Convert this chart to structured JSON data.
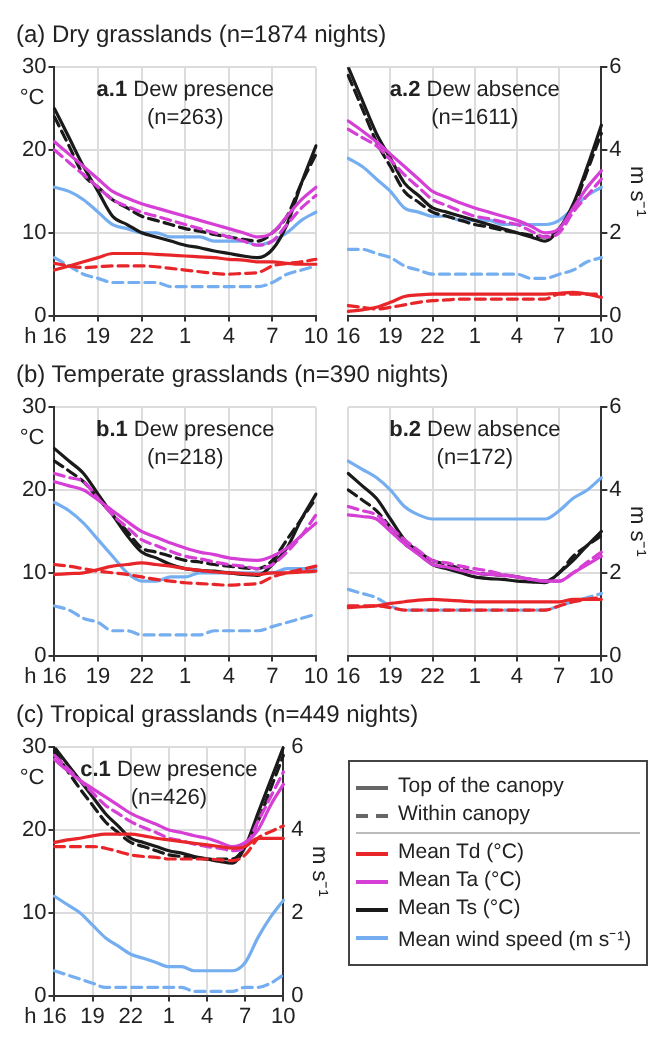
{
  "chart_data": [
    {
      "type": "line",
      "title": "a.1 Dew presence",
      "subtitle": "(n=263)",
      "annotations": [
        "(a) Dry grasslands (n=1874 nights)"
      ],
      "xlabel": "h",
      "ylabel": "°C",
      "tick_labels": "xy",
      "grid": true,
      "marker": "none",
      "categories": [
        "16",
        null,
        null,
        "19",
        null,
        null,
        "22",
        null,
        null,
        "1",
        null,
        null,
        "4",
        null,
        null,
        "7",
        null,
        null,
        "10"
      ],
      "ylim": [
        0,
        30
      ],
      "yticks": [
        0,
        10,
        20,
        30
      ],
      "y2lim": [
        0,
        6
      ],
      "series": [
        {
          "color": "#e8262a",
          "line_style": "solid",
          "values": [
            5.5,
            6,
            6.5,
            7,
            7.5,
            7.5,
            7.5,
            7.4,
            7.3,
            7.2,
            7.1,
            7,
            6.8,
            6.7,
            6.5,
            6.5,
            6.3,
            6.2,
            6.2
          ]
        },
        {
          "color": "#e8262a",
          "line_style": "dashed",
          "values": [
            6.3,
            6,
            5.8,
            5.9,
            6,
            6,
            6,
            5.9,
            5.7,
            5.5,
            5.3,
            5.1,
            5,
            5.1,
            5.2,
            6,
            6.3,
            6.5,
            6.8
          ]
        },
        {
          "color": "#d63fd6",
          "line_style": "solid",
          "values": [
            21,
            19.5,
            18,
            16.5,
            15,
            14.2,
            13.5,
            13,
            12.5,
            12,
            11.5,
            11,
            10.5,
            10,
            9.5,
            10,
            12,
            14,
            15.5
          ]
        },
        {
          "color": "#d63fd6",
          "line_style": "dashed",
          "values": [
            20,
            18.5,
            17,
            15.5,
            14,
            13.2,
            12.5,
            12,
            11.5,
            11,
            10.5,
            10,
            9.5,
            9,
            8.5,
            9,
            11,
            13,
            14.5
          ]
        },
        {
          "color": "#1a1a1a",
          "line_style": "solid",
          "values": [
            25,
            21.5,
            18,
            15,
            12,
            11,
            10,
            9.5,
            9,
            8.5,
            8.2,
            7.8,
            7.5,
            7.2,
            7,
            8,
            11,
            16,
            20.5
          ]
        },
        {
          "color": "#1a1a1a",
          "line_style": "dashed",
          "values": [
            24,
            20.5,
            17,
            15.5,
            14,
            13,
            12,
            11.5,
            11,
            10.5,
            10.2,
            9.8,
            9.5,
            9.2,
            9,
            10,
            12,
            16,
            19.5
          ]
        },
        {
          "color": "#74aef0",
          "line_style": "solid",
          "axis": "y2",
          "values": [
            3.1,
            3.0,
            2.8,
            2.5,
            2.2,
            2.1,
            2.0,
            2.0,
            1.9,
            1.9,
            1.9,
            1.8,
            1.8,
            1.8,
            1.7,
            1.8,
            2.0,
            2.3,
            2.5
          ]
        },
        {
          "color": "#74aef0",
          "line_style": "dashed",
          "axis": "y2",
          "values": [
            1.4,
            1.2,
            1.0,
            0.9,
            0.8,
            0.8,
            0.8,
            0.8,
            0.7,
            0.7,
            0.7,
            0.7,
            0.7,
            0.7,
            0.7,
            0.8,
            1.0,
            1.1,
            1.2
          ]
        }
      ]
    },
    {
      "type": "line",
      "title": "a.2 Dew absence",
      "subtitle": "(n=1611)",
      "y2label": "m s⁻¹",
      "tick_labels": "xy2",
      "grid": true,
      "marker": "none",
      "categories": [
        "16",
        null,
        null,
        "19",
        null,
        null,
        "22",
        null,
        null,
        "1",
        null,
        null,
        "4",
        null,
        null,
        "7",
        null,
        null,
        "10"
      ],
      "ylim": [
        0,
        30
      ],
      "y2lim": [
        0,
        6
      ],
      "y2ticks": [
        0,
        2,
        4,
        6
      ],
      "series": [
        {
          "color": "#e8262a",
          "line_style": "solid",
          "values": [
            0.5,
            0.7,
            1,
            1.6,
            2.3,
            2.5,
            2.6,
            2.6,
            2.6,
            2.6,
            2.6,
            2.6,
            2.6,
            2.6,
            2.6,
            2.7,
            2.8,
            2.6,
            2.2
          ]
        },
        {
          "color": "#e8262a",
          "line_style": "dashed",
          "values": [
            1.2,
            1,
            0.8,
            1,
            1.3,
            1.6,
            1.8,
            1.9,
            2,
            2,
            2,
            2,
            2,
            2,
            2,
            2.6,
            2.6,
            2.6,
            2.6
          ]
        },
        {
          "color": "#d63fd6",
          "line_style": "solid",
          "values": [
            23.5,
            22.3,
            21,
            19.5,
            18,
            16.5,
            15,
            14.3,
            13.6,
            13,
            12.5,
            12,
            11.5,
            10.8,
            10,
            10.5,
            13,
            15.5,
            17.5
          ]
        },
        {
          "color": "#d63fd6",
          "line_style": "dashed",
          "values": [
            22.5,
            21.5,
            20.5,
            18.8,
            17,
            15.5,
            14,
            13.3,
            12.6,
            12,
            11.7,
            11.3,
            11,
            10.2,
            9.5,
            10,
            12.5,
            14.5,
            16.5
          ]
        },
        {
          "color": "#1a1a1a",
          "line_style": "solid",
          "values": [
            30,
            26,
            22,
            19,
            16,
            14.5,
            13,
            12.5,
            12,
            11.5,
            11,
            10.5,
            10,
            9.5,
            9,
            10.5,
            13.5,
            18,
            23
          ]
        },
        {
          "color": "#1a1a1a",
          "line_style": "dashed",
          "values": [
            29,
            25,
            21,
            18,
            15,
            13.7,
            12.5,
            12,
            11.5,
            11,
            10.7,
            10.3,
            10,
            9.7,
            9.5,
            10.5,
            13,
            17.5,
            22
          ]
        },
        {
          "color": "#74aef0",
          "line_style": "solid",
          "axis": "y2",
          "values": [
            3.8,
            3.6,
            3.3,
            3.0,
            2.6,
            2.5,
            2.4,
            2.4,
            2.3,
            2.3,
            2.3,
            2.2,
            2.2,
            2.2,
            2.2,
            2.3,
            2.6,
            2.9,
            3.1
          ]
        },
        {
          "color": "#74aef0",
          "line_style": "dashed",
          "axis": "y2",
          "values": [
            1.6,
            1.6,
            1.5,
            1.4,
            1.2,
            1.1,
            1.0,
            1.0,
            1.0,
            1.0,
            1.0,
            1.0,
            1.0,
            0.9,
            0.9,
            1.0,
            1.1,
            1.3,
            1.4
          ]
        }
      ]
    },
    {
      "type": "line",
      "title": "b.1 Dew presence",
      "subtitle": "(n=218)",
      "annotations": [
        "(b) Temperate grasslands (n=390 nights)"
      ],
      "xlabel": "h",
      "ylabel": "°C",
      "tick_labels": "xy",
      "grid": true,
      "marker": "none",
      "categories": [
        "16",
        null,
        null,
        "19",
        null,
        null,
        "22",
        null,
        null,
        "1",
        null,
        null,
        "4",
        null,
        null,
        "7",
        null,
        null,
        "10"
      ],
      "ylim": [
        0,
        30
      ],
      "yticks": [
        0,
        10,
        20,
        30
      ],
      "y2lim": [
        0,
        6
      ],
      "series": [
        {
          "color": "#e8262a",
          "line_style": "solid",
          "values": [
            9.8,
            9.9,
            10,
            10.4,
            10.8,
            11,
            11.2,
            11,
            10.8,
            10.5,
            10.3,
            10.1,
            10,
            9.9,
            9.8,
            10,
            10,
            10.1,
            10.2
          ]
        },
        {
          "color": "#e8262a",
          "line_style": "dashed",
          "values": [
            11,
            10.8,
            10.5,
            10.2,
            10,
            9.8,
            9.5,
            9.2,
            9,
            8.8,
            8.7,
            8.6,
            8.5,
            8.6,
            8.7,
            9.5,
            10,
            10.4,
            10.8
          ]
        },
        {
          "color": "#d63fd6",
          "line_style": "solid",
          "values": [
            21,
            20.5,
            20,
            18.8,
            17.5,
            16.2,
            15,
            14.3,
            13.6,
            13,
            12.5,
            12.2,
            11.8,
            11.6,
            11.5,
            12,
            13,
            14.5,
            16
          ]
        },
        {
          "color": "#d63fd6",
          "line_style": "dashed",
          "values": [
            22,
            21.5,
            21,
            19,
            17,
            15.5,
            14,
            13.3,
            12.6,
            12,
            11.7,
            11.3,
            11,
            10.8,
            10.5,
            11,
            12.5,
            14.5,
            17
          ]
        },
        {
          "color": "#1a1a1a",
          "line_style": "solid",
          "values": [
            25,
            23.5,
            22,
            19.5,
            17,
            14.5,
            12.5,
            11.8,
            11,
            10.5,
            10.3,
            10.2,
            10,
            9.8,
            9.7,
            11,
            13,
            16.5,
            19.5
          ]
        },
        {
          "color": "#1a1a1a",
          "line_style": "dashed",
          "values": [
            23.5,
            22.3,
            21,
            19,
            17,
            15,
            13,
            12.5,
            12,
            11.5,
            11.3,
            11,
            10.8,
            10.6,
            10.5,
            11.5,
            14,
            16.5,
            19
          ]
        },
        {
          "color": "#74aef0",
          "line_style": "solid",
          "axis": "y2",
          "values": [
            3.7,
            3.5,
            3.2,
            2.8,
            2.4,
            2.0,
            1.8,
            1.8,
            1.9,
            1.9,
            2.0,
            2.0,
            2.0,
            2.0,
            2.0,
            2.0,
            2.1,
            2.1,
            2.1
          ]
        },
        {
          "color": "#74aef0",
          "line_style": "dashed",
          "axis": "y2",
          "values": [
            1.2,
            1.1,
            0.9,
            0.8,
            0.6,
            0.6,
            0.5,
            0.5,
            0.5,
            0.5,
            0.5,
            0.6,
            0.6,
            0.6,
            0.6,
            0.7,
            0.8,
            0.9,
            1.0
          ]
        }
      ]
    },
    {
      "type": "line",
      "title": "b.2 Dew absence",
      "subtitle": "(n=172)",
      "y2label": "m s⁻¹",
      "tick_labels": "xy2",
      "grid": true,
      "marker": "none",
      "categories": [
        "16",
        null,
        null,
        "19",
        null,
        null,
        "22",
        null,
        null,
        "1",
        null,
        null,
        "4",
        null,
        null,
        "7",
        null,
        null,
        "10"
      ],
      "ylim": [
        0,
        30
      ],
      "y2lim": [
        0,
        6
      ],
      "y2ticks": [
        0,
        2,
        4,
        6
      ],
      "series": [
        {
          "color": "#e8262a",
          "line_style": "solid",
          "values": [
            5.8,
            5.9,
            6,
            6.3,
            6.5,
            6.7,
            6.8,
            6.7,
            6.6,
            6.5,
            6.5,
            6.5,
            6.5,
            6.5,
            6.5,
            6.5,
            6.8,
            6.8,
            6.8
          ]
        },
        {
          "color": "#e8262a",
          "line_style": "dashed",
          "values": [
            6,
            6,
            6,
            5.8,
            5.5,
            5.5,
            5.5,
            5.5,
            5.5,
            5.5,
            5.5,
            5.5,
            5.5,
            5.5,
            5.5,
            6,
            6.5,
            6.8,
            7
          ]
        },
        {
          "color": "#d63fd6",
          "line_style": "solid",
          "values": [
            17,
            16.8,
            16.5,
            15,
            13.5,
            12.2,
            11,
            10.7,
            10.3,
            10,
            9.8,
            9.7,
            9.5,
            9.2,
            9,
            9,
            10,
            11,
            12
          ]
        },
        {
          "color": "#d63fd6",
          "line_style": "dashed",
          "values": [
            18,
            17.5,
            17,
            15.5,
            14,
            12.7,
            11.5,
            11.2,
            10.8,
            10.5,
            10.2,
            9.8,
            9.5,
            9.2,
            9,
            9,
            10,
            11.3,
            12.5
          ]
        },
        {
          "color": "#1a1a1a",
          "line_style": "solid",
          "values": [
            22,
            20.5,
            19,
            16.5,
            14,
            12.5,
            11,
            10.5,
            10,
            9.5,
            9.3,
            9.2,
            9,
            8.9,
            8.8,
            10,
            11.5,
            13.3,
            15
          ]
        },
        {
          "color": "#1a1a1a",
          "line_style": "dashed",
          "values": [
            20,
            18.8,
            17.5,
            15.5,
            13.5,
            12.5,
            11.5,
            11,
            10.5,
            10,
            9.8,
            9.7,
            9.5,
            9.2,
            9,
            10,
            12,
            13.3,
            14.5
          ]
        },
        {
          "color": "#74aef0",
          "line_style": "solid",
          "axis": "y2",
          "values": [
            4.7,
            4.5,
            4.3,
            4.0,
            3.6,
            3.4,
            3.3,
            3.3,
            3.3,
            3.3,
            3.3,
            3.3,
            3.3,
            3.3,
            3.3,
            3.5,
            3.8,
            4.0,
            4.3
          ]
        },
        {
          "color": "#74aef0",
          "line_style": "dashed",
          "axis": "y2",
          "values": [
            1.6,
            1.5,
            1.4,
            1.2,
            1.1,
            1.1,
            1.1,
            1.1,
            1.1,
            1.1,
            1.1,
            1.1,
            1.1,
            1.1,
            1.1,
            1.2,
            1.3,
            1.4,
            1.5
          ]
        }
      ]
    },
    {
      "type": "line",
      "title": "c.1 Dew presence",
      "subtitle": "(n=426)",
      "annotations": [
        "(c) Tropical grasslands (n=449 nights)"
      ],
      "xlabel": "h",
      "ylabel": "°C",
      "y2label": "m s⁻¹",
      "grid": true,
      "marker": "none",
      "categories": [
        "16",
        null,
        null,
        "19",
        null,
        null,
        "22",
        null,
        null,
        "1",
        null,
        null,
        "4",
        null,
        null,
        "7",
        null,
        null,
        "10"
      ],
      "ylim": [
        0,
        30
      ],
      "yticks": [
        0,
        10,
        20,
        30
      ],
      "y2lim": [
        0,
        6
      ],
      "y2ticks": [
        0,
        2,
        4,
        6
      ],
      "series": [
        {
          "color": "#e8262a",
          "line_style": "solid",
          "values": [
            18.5,
            18.8,
            19,
            19.3,
            19.5,
            19.5,
            19.5,
            19.3,
            19,
            18.8,
            18.6,
            18.4,
            18.2,
            18,
            17.8,
            18,
            19,
            19,
            19
          ]
        },
        {
          "color": "#e8262a",
          "line_style": "dashed",
          "values": [
            18,
            18,
            18,
            18,
            17.8,
            17.4,
            17,
            16.8,
            16.7,
            16.5,
            16.5,
            16.5,
            16.5,
            16.4,
            16.3,
            17,
            19,
            19.8,
            20.5
          ]
        },
        {
          "color": "#d63fd6",
          "line_style": "solid",
          "values": [
            28.5,
            27.2,
            26,
            25,
            24,
            23,
            22,
            21.3,
            20.7,
            20,
            19.7,
            19.3,
            19,
            18.5,
            18,
            18.5,
            20,
            23,
            25.5
          ]
        },
        {
          "color": "#d63fd6",
          "line_style": "dashed",
          "values": [
            29,
            27.5,
            26,
            24.5,
            23,
            22,
            21,
            20.3,
            19.7,
            19,
            18.7,
            18.3,
            18,
            17.8,
            17.5,
            18,
            21,
            24,
            27
          ]
        },
        {
          "color": "#1a1a1a",
          "line_style": "solid",
          "values": [
            30,
            28,
            26,
            24,
            22,
            20.5,
            19,
            18.5,
            18,
            17.5,
            17.2,
            16.8,
            16.5,
            16.2,
            16,
            18,
            22,
            26,
            30
          ]
        },
        {
          "color": "#1a1a1a",
          "line_style": "dashed",
          "values": [
            29.5,
            27.2,
            25,
            23,
            21,
            19.7,
            18.5,
            18,
            17.5,
            17,
            16.8,
            16.7,
            16.5,
            16.5,
            16.5,
            18,
            21,
            25,
            29
          ]
        },
        {
          "color": "#74aef0",
          "line_style": "solid",
          "axis": "y2",
          "values": [
            2.4,
            2.2,
            2.0,
            1.7,
            1.4,
            1.2,
            1.0,
            0.9,
            0.8,
            0.7,
            0.7,
            0.6,
            0.6,
            0.6,
            0.6,
            0.8,
            1.4,
            1.9,
            2.3
          ]
        },
        {
          "color": "#74aef0",
          "line_style": "dashed",
          "axis": "y2",
          "values": [
            0.6,
            0.5,
            0.4,
            0.3,
            0.2,
            0.2,
            0.2,
            0.2,
            0.2,
            0.2,
            0.2,
            0.1,
            0.1,
            0.1,
            0.1,
            0.2,
            0.2,
            0.3,
            0.5
          ]
        }
      ]
    },
    {
      "type": "other",
      "annotations": [
        "Top of the canopy",
        "Within canopy",
        "Mean Td (°C)",
        "Mean Ta (°C)",
        "Mean Ts (°C)",
        "Mean wind speed (m s⁻¹)"
      ]
    }
  ]
}
